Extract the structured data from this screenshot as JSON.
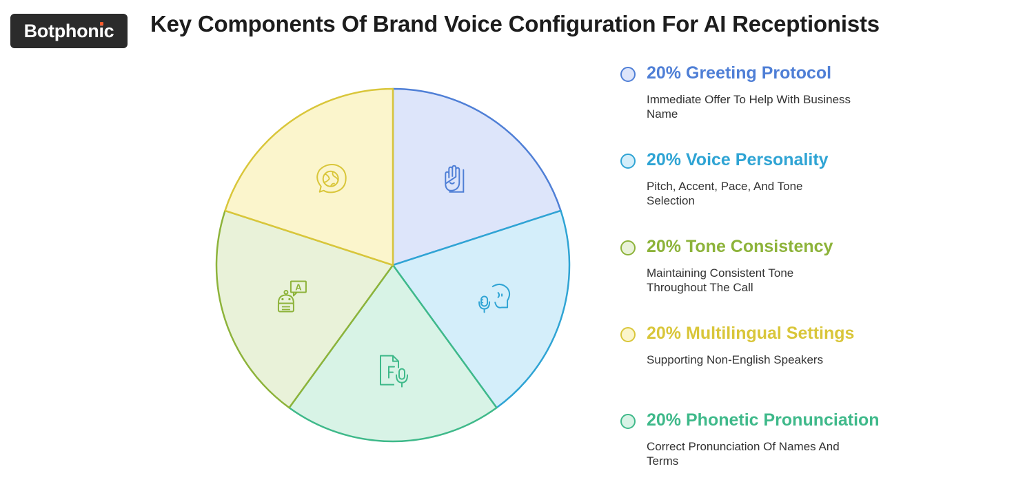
{
  "brand": {
    "name": "Botphonic"
  },
  "title": "Key Components Of Brand Voice Configuration For AI Receptionists",
  "chart_data": {
    "type": "pie",
    "slices": [
      {
        "label": "Greeting Protocol",
        "percent": 20,
        "percent_label": "20%",
        "description": "Immediate Offer To Help With Business Name",
        "color": "#4f7fd6",
        "fill": "#dde5fa",
        "icon": "raised-hand-icon"
      },
      {
        "label": "Voice Personality",
        "percent": 20,
        "percent_label": "20%",
        "description": "Pitch, Accent, Pace, And Tone Selection",
        "color": "#2fa4d4",
        "fill": "#d4eefa",
        "icon": "voice-profile-mic-icon"
      },
      {
        "label": "Tone Consistency",
        "percent": 20,
        "percent_label": "20%",
        "description": "Maintaining Consistent Tone Throughout The Call",
        "color": "#8db33a",
        "fill": "#e9f2d9",
        "icon": "robot-translate-icon"
      },
      {
        "label": "Multilingual Settings",
        "percent": 20,
        "percent_label": "20%",
        "description": "Supporting Non-English Speakers",
        "color": "#d9c63a",
        "fill": "#fbf5cc",
        "icon": "globe-speech-bubble-icon"
      },
      {
        "label": "Phonetic Pronunciation",
        "percent": 20,
        "percent_label": "20%",
        "description": "Correct Pronunciation Of Names And Terms",
        "color": "#3fb98a",
        "fill": "#d8f3e6",
        "icon": "document-mic-icon"
      }
    ],
    "slice_order_clockwise_from_top": [
      "Greeting Protocol",
      "Voice Personality",
      "Phonetic Pronunciation",
      "Tone Consistency",
      "Multilingual Settings"
    ]
  }
}
